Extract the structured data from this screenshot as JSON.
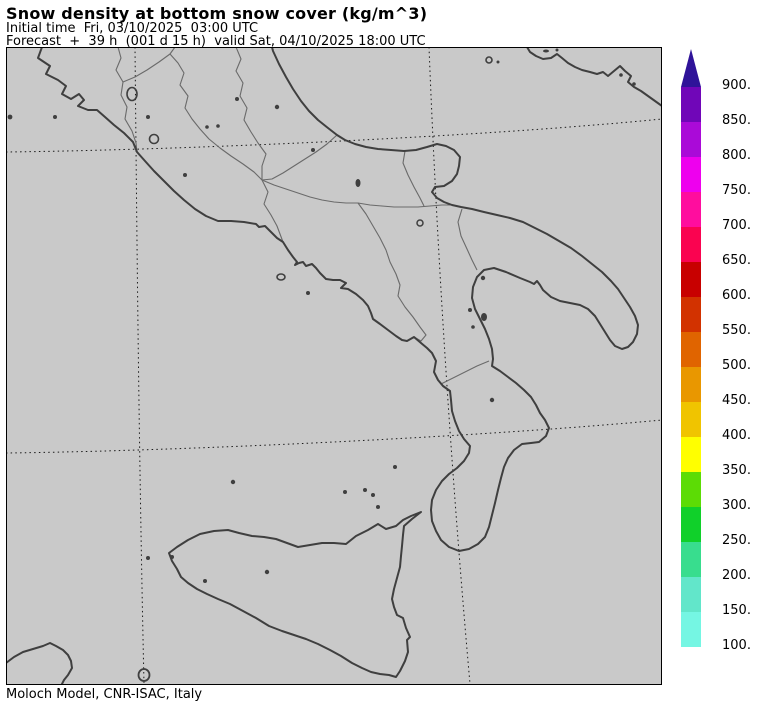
{
  "header": {
    "title": "Snow density at bottom snow cover (kg/m^3)",
    "line2": "Initial time  Fri, 03/10/2025  03:00 UTC",
    "line3": "Forecast  +  39 h  (001 d 15 h)  valid Sat, 04/10/2025 18:00 UTC"
  },
  "footer": {
    "caption": "Moloch Model, CNR-ISAC, Italy"
  },
  "map": {
    "background_color": "#c9c9c9",
    "coast_color": "#3f3f3f",
    "region_border_color": "#6a6a6a",
    "grid_color": "#1a1a1a",
    "frame_color": "#000000"
  },
  "colorbar": {
    "arrow_color": "#2f1399",
    "labels": [
      "900.",
      "850.",
      "800.",
      "750.",
      "700.",
      "650.",
      "600.",
      "550.",
      "500.",
      "450.",
      "400.",
      "350.",
      "300.",
      "250.",
      "200.",
      "150.",
      "100."
    ],
    "segment_colors": [
      "#7006b8",
      "#aa0ad8",
      "#ee00ee",
      "#ff0d9e",
      "#fa0350",
      "#c80000",
      "#d23200",
      "#e06400",
      "#e99700",
      "#f0c400",
      "#ffff00",
      "#5cdc05",
      "#10d02a",
      "#38dd8e",
      "#62e6ca",
      "#75f6e3"
    ]
  }
}
